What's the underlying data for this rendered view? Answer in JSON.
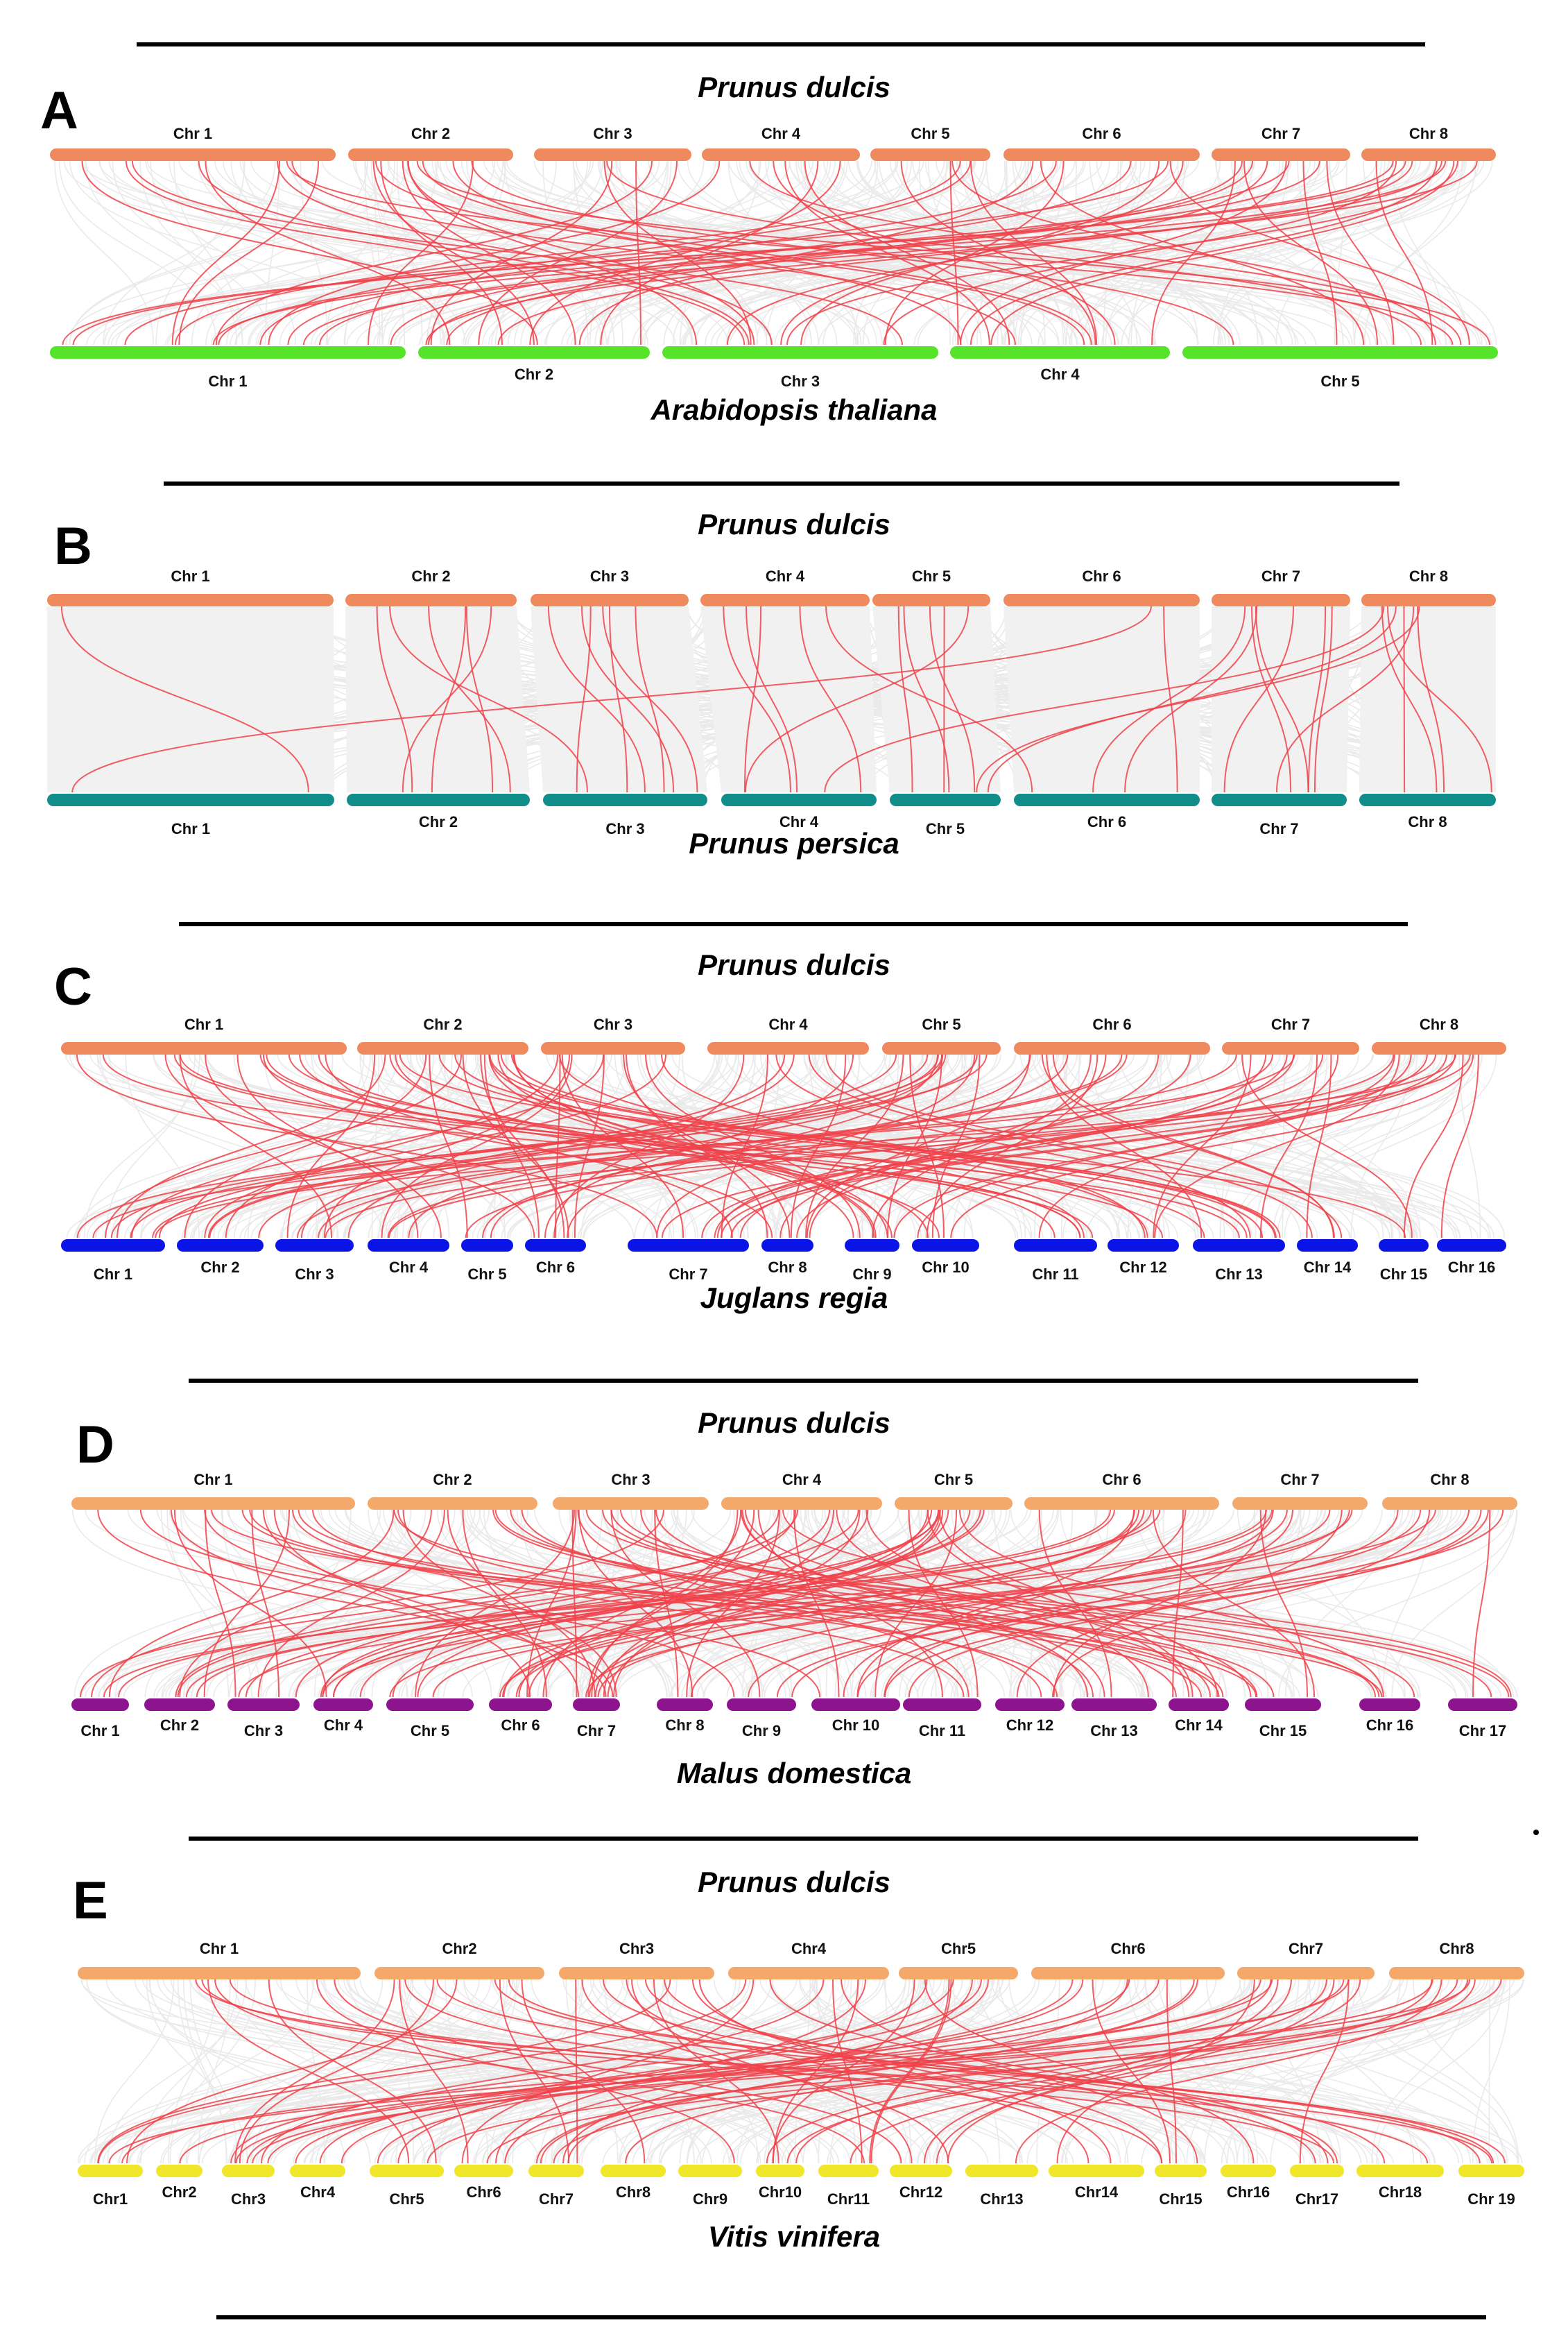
{
  "colors": {
    "top_chr": "#EF8A5E",
    "top_chr_light": "#F4A96A",
    "red_link": "#F0424A",
    "gray_link": "#D9D9D9",
    "divider": "#000000"
  },
  "panels": [
    {
      "label": "A",
      "top_species": "Prunus dulcis",
      "bottom_species": "Arabidopsis thaliana",
      "bottom_color": "#55E42A",
      "top_chromosomes": [
        "Chr 1",
        "Chr 2",
        "Chr 3",
        "Chr 4",
        "Chr 5",
        "Chr 6",
        "Chr 7",
        "Chr 8"
      ],
      "bottom_chromosomes": [
        "Chr 1",
        "Chr 2",
        "Chr 3",
        "Chr 4",
        "Chr 5"
      ]
    },
    {
      "label": "B",
      "top_species": "Prunus dulcis",
      "bottom_species": "Prunus persica",
      "bottom_color": "#128E8A",
      "top_chromosomes": [
        "Chr 1",
        "Chr 2",
        "Chr 3",
        "Chr 4",
        "Chr 5",
        "Chr 6",
        "Chr 7",
        "Chr 8"
      ],
      "bottom_chromosomes": [
        "Chr 1",
        "Chr 2",
        "Chr 3",
        "Chr 4",
        "Chr 5",
        "Chr 6",
        "Chr 7",
        "Chr 8"
      ]
    },
    {
      "label": "C",
      "top_species": "Prunus dulcis",
      "bottom_species": "Juglans regia",
      "bottom_color": "#0A14E6",
      "top_chromosomes": [
        "Chr 1",
        "Chr 2",
        "Chr 3",
        "Chr 4",
        "Chr 5",
        "Chr 6",
        "Chr 7",
        "Chr 8"
      ],
      "bottom_chromosomes": [
        "Chr 1",
        "Chr 2",
        "Chr 3",
        "Chr 4",
        "Chr 5",
        "Chr 6",
        "Chr 7",
        "Chr 8",
        "Chr 9",
        "Chr 10",
        "Chr 11",
        "Chr 12",
        "Chr 13",
        "Chr 14",
        "Chr 15",
        "Chr 16"
      ]
    },
    {
      "label": "D",
      "top_species": "Prunus dulcis",
      "bottom_species": "Malus domestica",
      "bottom_color": "#8E138E",
      "top_chromosomes": [
        "Chr 1",
        "Chr 2",
        "Chr 3",
        "Chr 4",
        "Chr 5",
        "Chr 6",
        "Chr 7",
        "Chr 8"
      ],
      "bottom_chromosomes": [
        "Chr 1",
        "Chr 2",
        "Chr 3",
        "Chr 4",
        "Chr 5",
        "Chr 6",
        "Chr 7",
        "Chr 8",
        "Chr 9",
        "Chr 10",
        "Chr 11",
        "Chr 12",
        "Chr 13",
        "Chr 14",
        "Chr 15",
        "Chr 16",
        "Chr 17"
      ]
    },
    {
      "label": "E",
      "top_species": "Prunus dulcis",
      "bottom_species": "Vitis vinifera",
      "bottom_color": "#F0E62A",
      "top_chromosomes": [
        "Chr 1",
        "Chr2",
        "Chr3",
        "Chr4",
        "Chr5",
        "Chr6",
        "Chr7",
        "Chr8"
      ],
      "bottom_chromosomes": [
        "Chr1",
        "Chr2",
        "Chr3",
        "Chr4",
        "Chr5",
        "Chr6",
        "Chr7",
        "Chr8",
        "Chr9",
        "Chr10",
        "Chr11",
        "Chr12",
        "Chr13",
        "Chr14",
        "Chr15",
        "Chr16",
        "Chr17",
        "Chr18",
        "Chr 19"
      ]
    }
  ]
}
